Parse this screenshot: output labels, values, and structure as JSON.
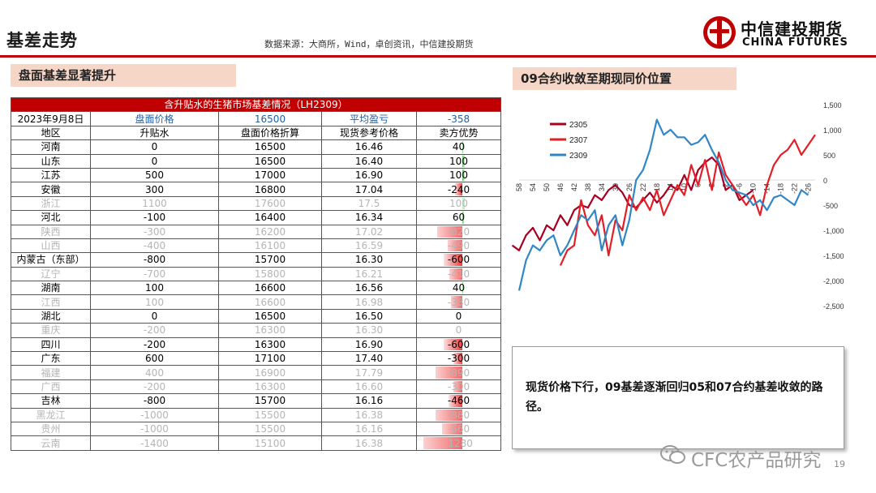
{
  "header": {
    "title": "基差走势",
    "source": "数据来源：大商所，Wind，卓创资讯，中信建投期货",
    "logo_cn": "中信建投期货",
    "logo_en": "CHINA FUTURES"
  },
  "left_section": {
    "label": "盘面基差显著提升"
  },
  "right_section": {
    "label": "09合约收敛至期现同价位置"
  },
  "table": {
    "caption": "含升贴水的生猪市场基差情况（LH2309）",
    "info": {
      "date": "2023年9月8日",
      "futures_label": "盘面价格",
      "futures_value": "16500",
      "breakeven_label": "平均盈亏",
      "breakeven_value": "-358"
    },
    "headers": [
      "地区",
      "升贴水",
      "盘面价格折算",
      "现货参考价格",
      "卖方优势"
    ],
    "rows": [
      {
        "region": "河南",
        "premium": "0",
        "converted": "16500",
        "spot": "16.46",
        "advantage": "40",
        "adv": 40,
        "muted": false
      },
      {
        "region": "山东",
        "premium": "0",
        "converted": "16500",
        "spot": "16.40",
        "advantage": "100",
        "adv": 100,
        "muted": false
      },
      {
        "region": "江苏",
        "premium": "500",
        "converted": "17000",
        "spot": "16.90",
        "advantage": "100",
        "adv": 100,
        "muted": false
      },
      {
        "region": "安徽",
        "premium": "300",
        "converted": "16800",
        "spot": "17.04",
        "advantage": "-240",
        "adv": -240,
        "muted": false
      },
      {
        "region": "浙江",
        "premium": "1100",
        "converted": "17600",
        "spot": "17.5",
        "advantage": "100",
        "adv": 100,
        "muted": true
      },
      {
        "region": "河北",
        "premium": "-100",
        "converted": "16400",
        "spot": "16.34",
        "advantage": "60",
        "adv": 60,
        "muted": false
      },
      {
        "region": "陕西",
        "premium": "-300",
        "converted": "16200",
        "spot": "17.02",
        "advantage": "-820",
        "adv": -820,
        "muted": true
      },
      {
        "region": "山西",
        "premium": "-400",
        "converted": "16100",
        "spot": "16.59",
        "advantage": "-490",
        "adv": -490,
        "muted": true
      },
      {
        "region": "内蒙古（东部）",
        "premium": "-800",
        "converted": "15700",
        "spot": "16.30",
        "advantage": "-600",
        "adv": -600,
        "muted": false
      },
      {
        "region": "辽宁",
        "premium": "-700",
        "converted": "15800",
        "spot": "16.21",
        "advantage": "-410",
        "adv": -410,
        "muted": true
      },
      {
        "region": "湖南",
        "premium": "100",
        "converted": "16600",
        "spot": "16.56",
        "advantage": "40",
        "adv": 40,
        "muted": false
      },
      {
        "region": "江西",
        "premium": "100",
        "converted": "16600",
        "spot": "16.98",
        "advantage": "-380",
        "adv": -380,
        "muted": true
      },
      {
        "region": "湖北",
        "premium": "0",
        "converted": "16500",
        "spot": "16.50",
        "advantage": "0",
        "adv": 0,
        "muted": false
      },
      {
        "region": "重庆",
        "premium": "-200",
        "converted": "16300",
        "spot": "16.30",
        "advantage": "0",
        "adv": 0,
        "muted": true
      },
      {
        "region": "四川",
        "premium": "-200",
        "converted": "16300",
        "spot": "16.90",
        "advantage": "-600",
        "adv": -600,
        "muted": false
      },
      {
        "region": "广东",
        "premium": "600",
        "converted": "17100",
        "spot": "17.40",
        "advantage": "-300",
        "adv": -300,
        "muted": false
      },
      {
        "region": "福建",
        "premium": "400",
        "converted": "16900",
        "spot": "17.79",
        "advantage": "-890",
        "adv": -890,
        "muted": true
      },
      {
        "region": "广西",
        "premium": "-200",
        "converted": "16300",
        "spot": "16.60",
        "advantage": "-300",
        "adv": -300,
        "muted": true
      },
      {
        "region": "吉林",
        "premium": "-800",
        "converted": "15700",
        "spot": "16.16",
        "advantage": "-460",
        "adv": -460,
        "muted": false
      },
      {
        "region": "黑龙江",
        "premium": "-1000",
        "converted": "15500",
        "spot": "16.38",
        "advantage": "-880",
        "adv": -880,
        "muted": true
      },
      {
        "region": "贵州",
        "premium": "-1000",
        "converted": "15500",
        "spot": "16.16",
        "advantage": "-660",
        "adv": -660,
        "muted": true
      },
      {
        "region": "云南",
        "premium": "-1400",
        "converted": "15100",
        "spot": "16.38",
        "advantage": "-1280",
        "adv": -1280,
        "muted": true
      }
    ]
  },
  "chart_data": {
    "type": "line",
    "title": "",
    "xlabel": "",
    "ylabel": "",
    "x_tick_labels": [
      "58",
      "54",
      "50",
      "46",
      "42",
      "38",
      "34",
      "30",
      "26",
      "22",
      "18",
      "14",
      "10",
      "6",
      "2",
      "-2",
      "-6",
      "-10",
      "-14",
      "-18",
      "-22",
      "-26"
    ],
    "x_range": [
      58,
      -28
    ],
    "y_ticks": [
      "1,500",
      "1,000",
      "500",
      "0",
      "-500",
      "-1,000",
      "-1,500",
      "-2,000",
      "-2,500"
    ],
    "ylim": [
      -2500,
      1500
    ],
    "grid": false,
    "legend_position": "top-left",
    "series": [
      {
        "name": "2305",
        "color": "#a50021",
        "x": [
          60,
          58,
          56,
          54,
          52,
          50,
          48,
          46,
          44,
          42,
          40,
          38,
          36,
          34,
          32,
          30,
          28,
          26,
          24,
          22,
          20,
          18,
          16,
          14,
          12,
          10,
          8,
          6,
          4,
          2,
          0,
          -2,
          -4,
          -6,
          -8,
          -10
        ],
        "y": [
          -1300,
          -1400,
          -1100,
          -950,
          -1200,
          -900,
          -1000,
          -700,
          -900,
          -600,
          -500,
          -550,
          -300,
          -400,
          -200,
          -100,
          -250,
          -500,
          -550,
          -400,
          -250,
          -450,
          -300,
          -100,
          -200,
          100,
          -200,
          200,
          350,
          450,
          300,
          -200,
          -100,
          -400,
          -300,
          -200
        ]
      },
      {
        "name": "2307",
        "color": "#e41e26",
        "x": [
          46,
          44,
          42,
          40,
          38,
          36,
          34,
          32,
          30,
          28,
          26,
          24,
          22,
          20,
          18,
          16,
          14,
          12,
          10,
          8,
          6,
          4,
          2,
          0,
          -2,
          -4,
          -6,
          -8,
          -10,
          -12,
          -14,
          -16,
          -18,
          -20,
          -22,
          -24,
          -26,
          -28
        ],
        "y": [
          -1700,
          -1400,
          -1300,
          -400,
          -900,
          -1100,
          -700,
          -1500,
          -800,
          -1000,
          -300,
          -600,
          -350,
          -600,
          -200,
          -700,
          -400,
          -100,
          -300,
          300,
          -100,
          400,
          -200,
          550,
          100,
          -100,
          -300,
          -500,
          -300,
          -700,
          -100,
          300,
          500,
          600,
          800,
          500,
          700,
          900
        ]
      },
      {
        "name": "2309",
        "color": "#2f87c7",
        "x": [
          58,
          56,
          54,
          52,
          50,
          48,
          46,
          44,
          42,
          40,
          38,
          36,
          34,
          32,
          30,
          28,
          26,
          24,
          22,
          20,
          18,
          16,
          14,
          12,
          10,
          8,
          6,
          4,
          2,
          0,
          -2,
          -4,
          -6,
          -8,
          -10,
          -12,
          -14,
          -16,
          -18,
          -20,
          -22,
          -24,
          -26
        ],
        "y": [
          -2200,
          -1600,
          -1300,
          -1400,
          -1200,
          -1100,
          -1500,
          -1300,
          -1000,
          -700,
          -800,
          -600,
          -1400,
          -900,
          -700,
          -1300,
          -800,
          0,
          200,
          600,
          1200,
          900,
          1000,
          850,
          850,
          700,
          750,
          900,
          600,
          350,
          0,
          -200,
          -250,
          -300,
          -500,
          -400,
          -600,
          -350,
          -300,
          -400,
          -500,
          -200,
          -300
        ]
      }
    ]
  },
  "note": {
    "text": "现货价格下行，09基差逐渐回归05和07合约基差收敛的路径。"
  },
  "footer": {
    "watermark": "CFC农产品研究",
    "page": "19"
  }
}
